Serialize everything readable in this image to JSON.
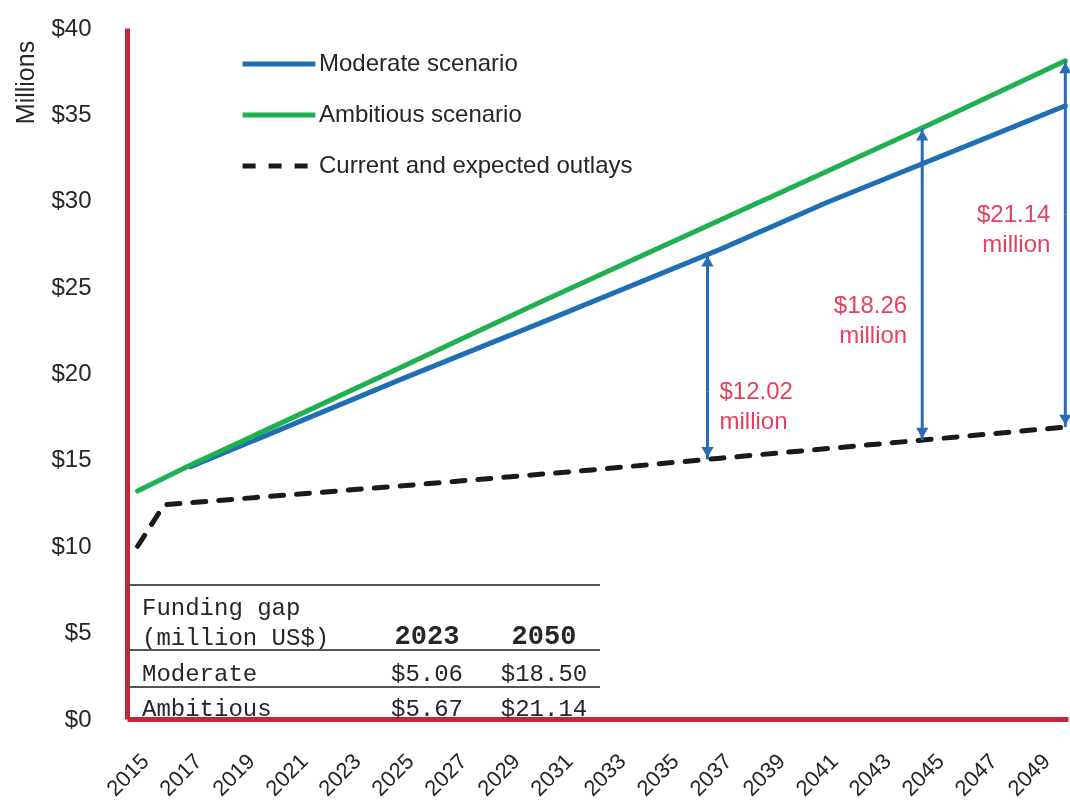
{
  "chart_data": {
    "type": "line",
    "ylabel": "Millions",
    "legend": "top left",
    "xlim": [
      2014.6,
      2050.1
    ],
    "xticks": [
      2015,
      2017,
      2019,
      2021,
      2023,
      2025,
      2027,
      2029,
      2031,
      2033,
      2035,
      2037,
      2039,
      2041,
      2043,
      2045,
      2047,
      2049
    ],
    "ylim": [
      0,
      40
    ],
    "yticks": [
      {
        "value": 0,
        "label": "$0"
      },
      {
        "value": 5,
        "label": "$5"
      },
      {
        "value": 10,
        "label": "$10"
      },
      {
        "value": 15,
        "label": "$15"
      },
      {
        "value": 20,
        "label": "$20"
      },
      {
        "value": 25,
        "label": "$25"
      },
      {
        "value": 30,
        "label": "$30"
      },
      {
        "value": 35,
        "label": "$35"
      },
      {
        "value": 40,
        "label": "$40"
      }
    ],
    "series": [
      {
        "name": "Moderate scenario",
        "color": "#1f6fb5",
        "x": [
          2017,
          2025,
          2030,
          2037,
          2041,
          2050
        ],
        "values": [
          14.6,
          19.7,
          22.8,
          27.2,
          29.9,
          35.5
        ]
      },
      {
        "name": "Ambitious scenario",
        "color": "#1fb04f",
        "x": [
          2015,
          2017,
          2025,
          2030,
          2037,
          2045,
          2050
        ],
        "values": [
          13.2,
          14.7,
          20.4,
          24.0,
          28.9,
          34.5,
          38.1
        ]
      },
      {
        "name": "Current and expected outlays",
        "color": "#1a1a1a",
        "line_style": "dashed",
        "x": [
          2015,
          2016,
          2025,
          2032,
          2037,
          2045,
          2050
        ],
        "values": [
          10.0,
          12.4,
          13.5,
          14.4,
          15.1,
          16.2,
          16.9
        ]
      }
    ],
    "annotations": [
      "Funding gap (million US$)",
      "2023",
      "2050",
      "Moderate",
      "$5.06",
      "$18.50",
      "Ambitious",
      "$5.67",
      "$21.14",
      {
        "text": "$12.02 million",
        "x": 2036.5,
        "y": 26.9
      },
      {
        "text": "$18.26 million",
        "x": 2044.6,
        "y": 34.2
      },
      {
        "text": "$21.14 million",
        "x": 2050,
        "y": 38.1
      }
    ]
  }
}
